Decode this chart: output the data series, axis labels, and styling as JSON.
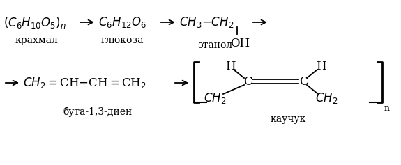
{
  "bg_color": "#ffffff",
  "fig_width": 5.75,
  "fig_height": 2.37,
  "dpi": 100,
  "starch_label": "крахмал",
  "glucose_label": "глюкоза",
  "ethanol_label": "этанол",
  "butadiene_label": "бута-1,3-диен",
  "rubber_label": "каучук",
  "font_size_formula": 12,
  "font_size_label": 10,
  "text_color": "#000000"
}
